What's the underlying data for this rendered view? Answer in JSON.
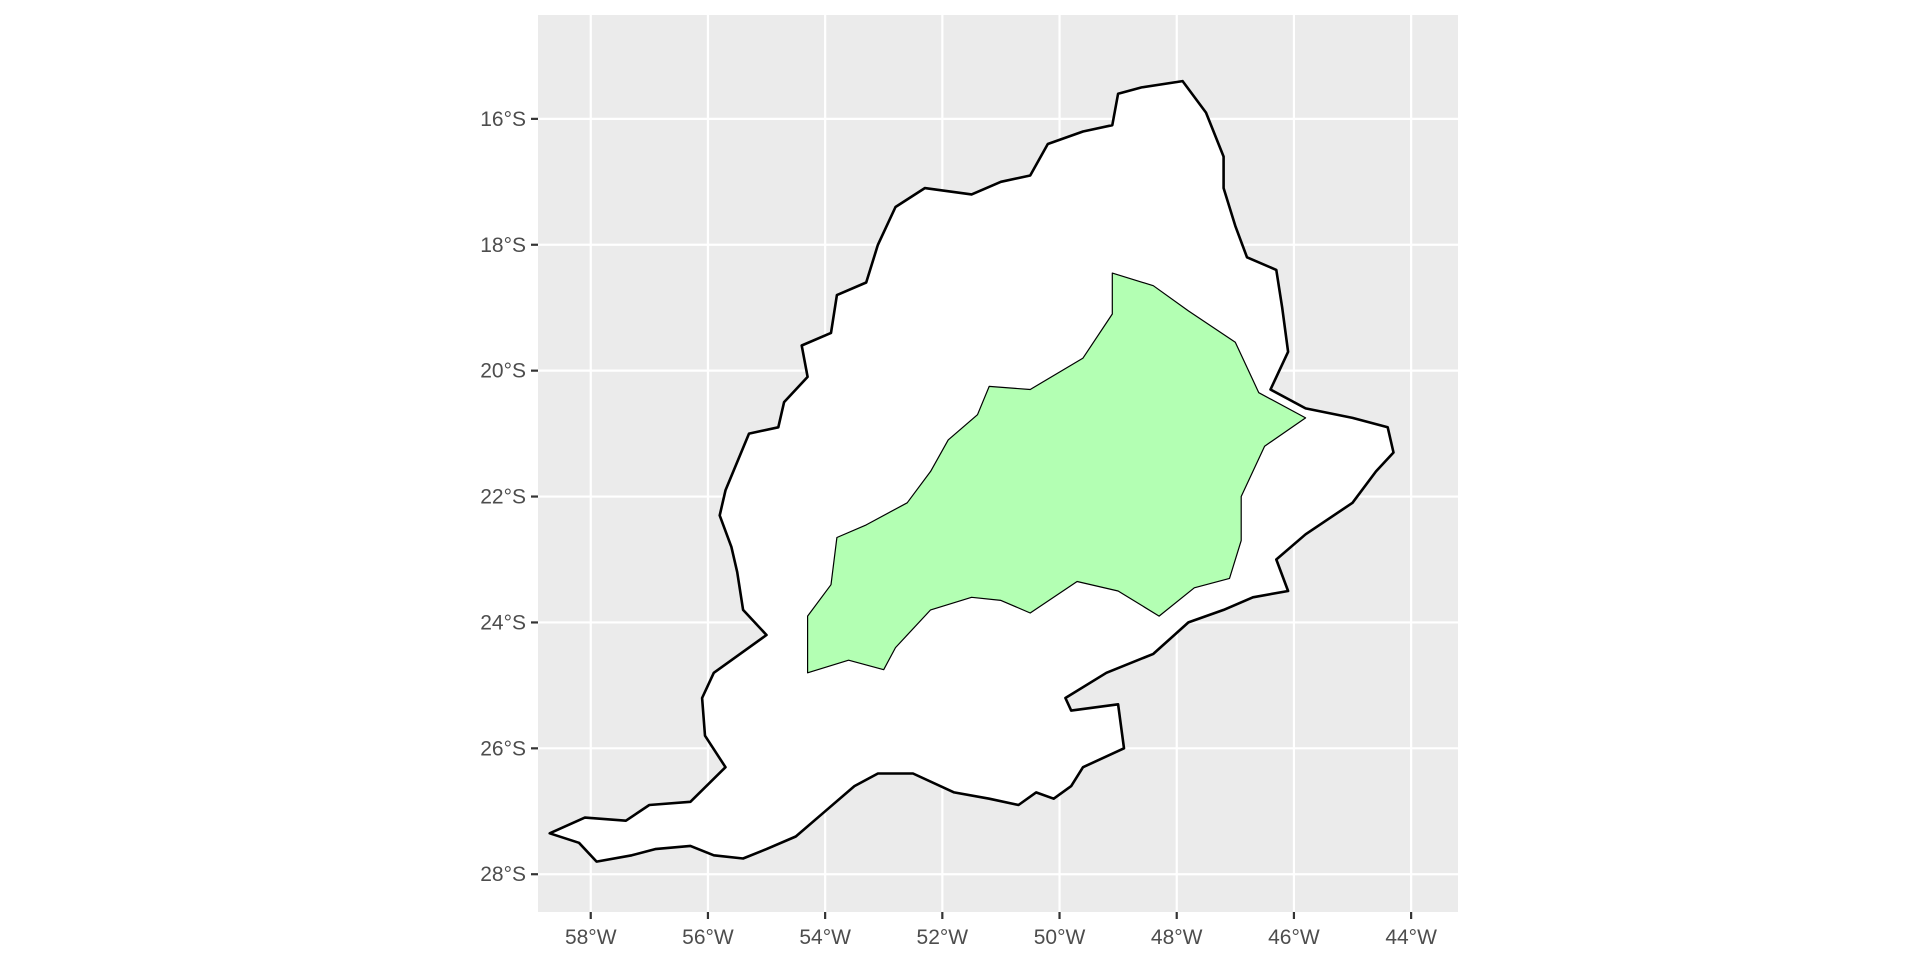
{
  "map": {
    "x_ticks": [
      {
        "value": -58,
        "label": "58°W"
      },
      {
        "value": -56,
        "label": "56°W"
      },
      {
        "value": -54,
        "label": "54°W"
      },
      {
        "value": -52,
        "label": "52°W"
      },
      {
        "value": -50,
        "label": "50°W"
      },
      {
        "value": -48,
        "label": "48°W"
      },
      {
        "value": -46,
        "label": "46°W"
      },
      {
        "value": -44,
        "label": "44°W"
      }
    ],
    "y_ticks": [
      {
        "value": -16,
        "label": "16°S"
      },
      {
        "value": -18,
        "label": "18°S"
      },
      {
        "value": -20,
        "label": "20°S"
      },
      {
        "value": -22,
        "label": "22°S"
      },
      {
        "value": -24,
        "label": "24°S"
      },
      {
        "value": -26,
        "label": "26°S"
      },
      {
        "value": -28,
        "label": "28°S"
      }
    ],
    "xlim": [
      -58.9,
      -43.2
    ],
    "ylim": [
      -28.6,
      -14.35
    ],
    "colors": {
      "panel_background": "#ebebeb",
      "grid": "#ffffff",
      "basin_fill": "#ffffff",
      "basin_outline": "#000000",
      "highlight_zone_fill": "#b3ffb3"
    },
    "basin_outline": [
      [
        -58.7,
        -27.35
      ],
      [
        -58.1,
        -27.1
      ],
      [
        -57.4,
        -27.15
      ],
      [
        -57.0,
        -26.9
      ],
      [
        -56.3,
        -26.85
      ],
      [
        -55.7,
        -26.3
      ],
      [
        -56.05,
        -25.8
      ],
      [
        -56.1,
        -25.2
      ],
      [
        -55.9,
        -24.8
      ],
      [
        -55.0,
        -24.2
      ],
      [
        -55.4,
        -23.8
      ],
      [
        -55.5,
        -23.2
      ],
      [
        -55.6,
        -22.8
      ],
      [
        -55.8,
        -22.3
      ],
      [
        -55.7,
        -21.9
      ],
      [
        -55.3,
        -21.0
      ],
      [
        -54.8,
        -20.9
      ],
      [
        -54.7,
        -20.5
      ],
      [
        -54.3,
        -20.1
      ],
      [
        -54.4,
        -19.6
      ],
      [
        -53.9,
        -19.4
      ],
      [
        -53.8,
        -18.8
      ],
      [
        -53.3,
        -18.6
      ],
      [
        -53.1,
        -18.0
      ],
      [
        -52.8,
        -17.4
      ],
      [
        -52.3,
        -17.1
      ],
      [
        -51.5,
        -17.2
      ],
      [
        -51.0,
        -17.0
      ],
      [
        -50.5,
        -16.9
      ],
      [
        -50.2,
        -16.4
      ],
      [
        -49.6,
        -16.2
      ],
      [
        -49.1,
        -16.1
      ],
      [
        -49.0,
        -15.6
      ],
      [
        -48.6,
        -15.5
      ],
      [
        -47.9,
        -15.4
      ],
      [
        -47.5,
        -15.9
      ],
      [
        -47.2,
        -16.6
      ],
      [
        -47.2,
        -17.1
      ],
      [
        -47.0,
        -17.7
      ],
      [
        -46.8,
        -18.2
      ],
      [
        -46.3,
        -18.4
      ],
      [
        -46.2,
        -19.0
      ],
      [
        -46.1,
        -19.7
      ],
      [
        -46.4,
        -20.3
      ],
      [
        -45.8,
        -20.6
      ],
      [
        -45.0,
        -20.75
      ],
      [
        -44.4,
        -20.9
      ],
      [
        -44.3,
        -21.3
      ],
      [
        -44.6,
        -21.6
      ],
      [
        -45.0,
        -22.1
      ],
      [
        -45.8,
        -22.6
      ],
      [
        -46.3,
        -23.0
      ],
      [
        -46.1,
        -23.5
      ],
      [
        -46.7,
        -23.6
      ],
      [
        -47.2,
        -23.8
      ],
      [
        -47.8,
        -24.0
      ],
      [
        -48.4,
        -24.5
      ],
      [
        -49.2,
        -24.8
      ],
      [
        -49.9,
        -25.2
      ],
      [
        -49.8,
        -25.4
      ],
      [
        -49.0,
        -25.3
      ],
      [
        -48.9,
        -26.0
      ],
      [
        -49.6,
        -26.3
      ],
      [
        -49.8,
        -26.6
      ],
      [
        -50.1,
        -26.8
      ],
      [
        -50.4,
        -26.7
      ],
      [
        -50.7,
        -26.9
      ],
      [
        -51.2,
        -26.8
      ],
      [
        -51.8,
        -26.7
      ],
      [
        -52.5,
        -26.4
      ],
      [
        -53.1,
        -26.4
      ],
      [
        -53.5,
        -26.6
      ],
      [
        -54.0,
        -27.0
      ],
      [
        -54.5,
        -27.4
      ],
      [
        -55.0,
        -27.6
      ],
      [
        -55.4,
        -27.75
      ],
      [
        -55.9,
        -27.7
      ],
      [
        -56.3,
        -27.55
      ],
      [
        -56.9,
        -27.6
      ],
      [
        -57.3,
        -27.7
      ],
      [
        -57.9,
        -27.8
      ],
      [
        -58.2,
        -27.5
      ],
      [
        -58.7,
        -27.35
      ]
    ],
    "highlight_zone": [
      [
        -49.1,
        -18.45
      ],
      [
        -48.4,
        -18.65
      ],
      [
        -47.8,
        -19.05
      ],
      [
        -47.0,
        -19.55
      ],
      [
        -46.6,
        -20.35
      ],
      [
        -45.8,
        -20.75
      ],
      [
        -46.5,
        -21.2
      ],
      [
        -46.9,
        -22.0
      ],
      [
        -46.9,
        -22.7
      ],
      [
        -47.1,
        -23.3
      ],
      [
        -47.7,
        -23.45
      ],
      [
        -48.3,
        -23.9
      ],
      [
        -49.0,
        -23.5
      ],
      [
        -49.7,
        -23.35
      ],
      [
        -50.5,
        -23.85
      ],
      [
        -51.0,
        -23.65
      ],
      [
        -51.5,
        -23.6
      ],
      [
        -52.2,
        -23.8
      ],
      [
        -52.8,
        -24.4
      ],
      [
        -53.0,
        -24.75
      ],
      [
        -53.6,
        -24.6
      ],
      [
        -54.3,
        -24.8
      ],
      [
        -54.3,
        -24.3
      ],
      [
        -54.3,
        -23.9
      ],
      [
        -53.9,
        -23.4
      ],
      [
        -53.8,
        -22.65
      ],
      [
        -53.3,
        -22.45
      ],
      [
        -52.6,
        -22.1
      ],
      [
        -52.2,
        -21.6
      ],
      [
        -51.9,
        -21.1
      ],
      [
        -51.4,
        -20.7
      ],
      [
        -51.2,
        -20.25
      ],
      [
        -50.5,
        -20.3
      ],
      [
        -49.6,
        -19.8
      ],
      [
        -49.1,
        -19.1
      ],
      [
        -49.1,
        -18.45
      ]
    ]
  }
}
